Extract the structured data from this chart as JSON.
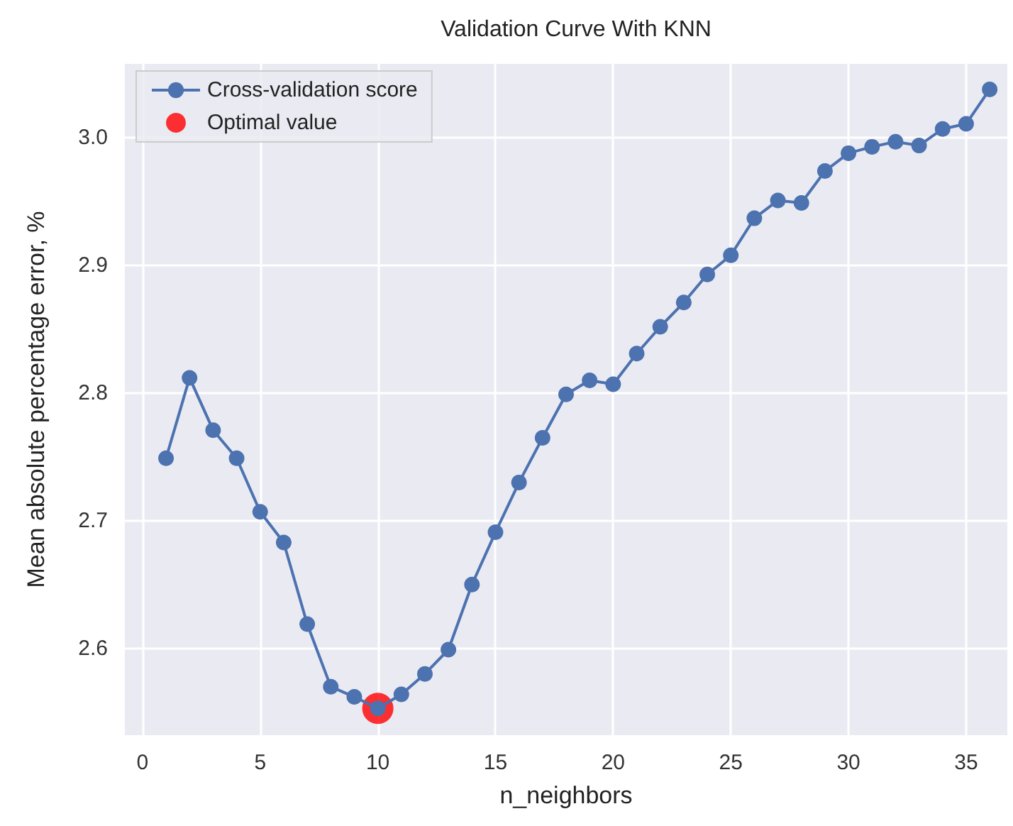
{
  "chart_data": {
    "type": "line",
    "title": "Validation Curve With KNN",
    "xlabel": "n_neighbors",
    "ylabel": "Mean absolute percentage error, %",
    "series": [
      {
        "name": "Cross-validation score",
        "color": "#4c72b0",
        "x": [
          1,
          2,
          3,
          4,
          5,
          6,
          7,
          8,
          9,
          10,
          11,
          12,
          13,
          14,
          15,
          16,
          17,
          18,
          19,
          20,
          21,
          22,
          23,
          24,
          25,
          26,
          27,
          28,
          29,
          30,
          31,
          32,
          33,
          34,
          35,
          36
        ],
        "values": [
          2.749,
          2.812,
          2.771,
          2.749,
          2.707,
          2.683,
          2.619,
          2.57,
          2.562,
          2.553,
          2.564,
          2.58,
          2.599,
          2.65,
          2.691,
          2.73,
          2.765,
          2.799,
          2.81,
          2.807,
          2.831,
          2.852,
          2.871,
          2.893,
          2.908,
          2.937,
          2.951,
          2.949,
          2.974,
          2.988,
          2.993,
          2.997,
          2.994,
          3.007,
          3.011,
          3.038
        ]
      },
      {
        "name": "Optimal value",
        "type": "scatter",
        "color": "#ff0000",
        "x": [
          10
        ],
        "values": [
          2.553
        ]
      }
    ],
    "xlim": [
      -0.75,
      36.75
    ],
    "xticks": [
      0,
      5,
      10,
      15,
      20,
      25,
      30,
      35
    ],
    "ylim": [
      2.532,
      3.058
    ],
    "yticks": [
      2.6,
      2.7,
      2.8,
      2.9,
      {
        "value": 3,
        "label": "3.0"
      }
    ],
    "grid": true,
    "legend": "top left",
    "marker": "circle",
    "line_style": "solid"
  }
}
